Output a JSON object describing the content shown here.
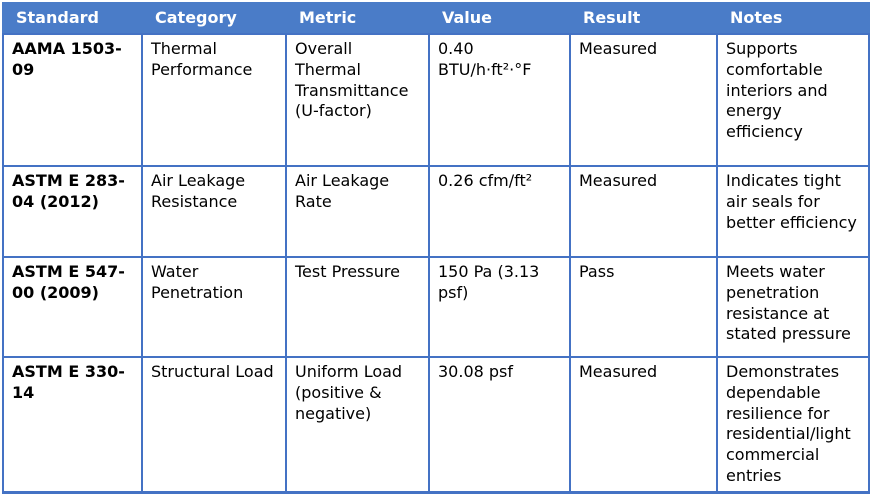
{
  "colors": {
    "header_bg": "#4a7cc8",
    "border": "#4472c4",
    "header_text": "#ffffff",
    "body_text": "#000000",
    "row_bg": "#ffffff"
  },
  "table": {
    "columns": [
      {
        "key": "standard",
        "label": "Standard"
      },
      {
        "key": "category",
        "label": "Category"
      },
      {
        "key": "metric",
        "label": "Metric"
      },
      {
        "key": "value",
        "label": "Value"
      },
      {
        "key": "result",
        "label": "Result"
      },
      {
        "key": "notes",
        "label": "Notes"
      }
    ],
    "rows": [
      {
        "standard": "AAMA 1503-09",
        "category": "Thermal Performance",
        "metric": "Overall Thermal Transmittance (U-factor)",
        "value": "0.40 BTU/h·ft²·°F",
        "result": "Measured",
        "notes": "Supports comfortable interiors and energy efficiency"
      },
      {
        "standard": "ASTM E 283-04 (2012)",
        "category": "Air Leakage Resistance",
        "metric": "Air Leakage Rate",
        "value": "0.26 cfm/ft²",
        "result": "Measured",
        "notes": "Indicates tight air seals for better efficiency"
      },
      {
        "standard": "ASTM E 547-00 (2009)",
        "category": "Water Penetration",
        "metric": "Test Pressure",
        "value": "150 Pa (3.13 psf)",
        "result": "Pass",
        "notes": "Meets water penetration resistance at stated pressure"
      },
      {
        "standard": "ASTM E 330-14",
        "category": "Structural Load",
        "metric": "Uniform Load (positive & negative)",
        "value": "30.08 psf",
        "result": "Measured",
        "notes": "Demonstrates dependable resilience for residential/light commercial entries"
      }
    ]
  }
}
